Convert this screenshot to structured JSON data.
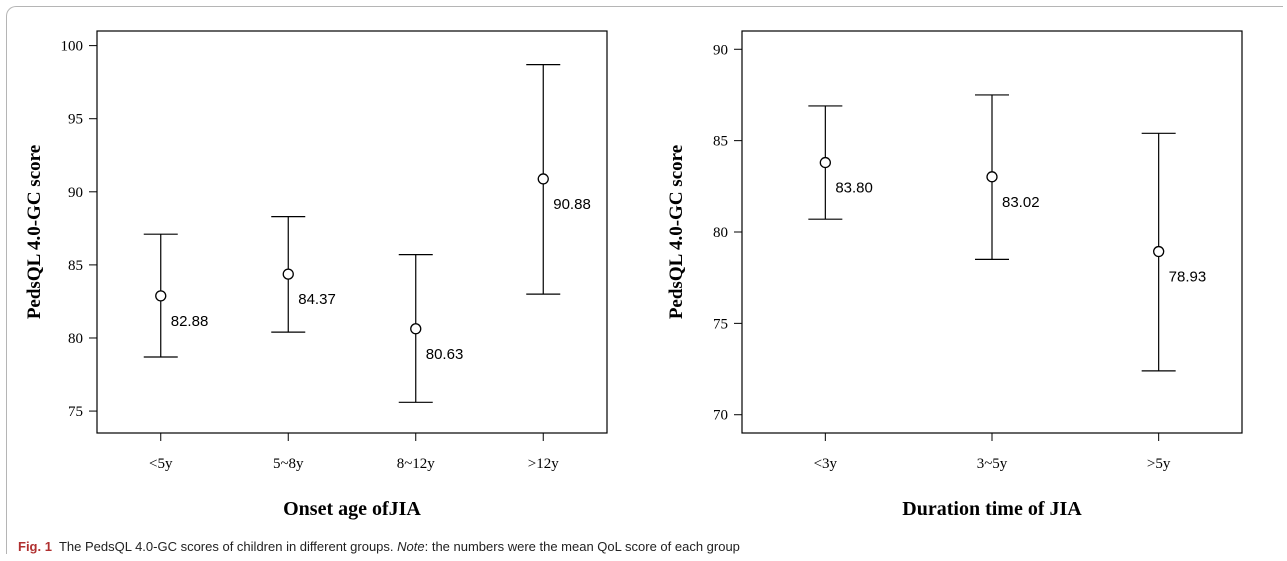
{
  "caption": {
    "label": "Fig. 1",
    "text_a": "The PedsQL 4.0-GC scores of children in different groups.",
    "note_word": "Note",
    "text_b": ": the numbers were the mean QoL score of each group"
  },
  "chart_data": [
    {
      "type": "errorbar",
      "xlabel": "Onset age ofJIA",
      "ylabel": "PedsQL 4.0-GC score",
      "ylim": [
        73.5,
        101
      ],
      "yticks": [
        75,
        80,
        85,
        90,
        95,
        100
      ],
      "categories": [
        "<5y",
        "5~8y",
        "8~12y",
        ">12y"
      ],
      "means": [
        82.88,
        84.37,
        80.63,
        90.88
      ],
      "mean_labels": [
        "82.88",
        "84.37",
        "80.63",
        "90.88"
      ],
      "lower": [
        78.7,
        80.4,
        75.6,
        83.0
      ],
      "upper": [
        87.1,
        88.3,
        85.7,
        98.7
      ]
    },
    {
      "type": "errorbar",
      "xlabel": "Duration time of JIA",
      "ylabel": "PedsQL 4.0-GC score",
      "ylim": [
        69,
        91
      ],
      "yticks": [
        70,
        75,
        80,
        85,
        90
      ],
      "categories": [
        "<3y",
        "3~5y",
        ">5y"
      ],
      "means": [
        83.8,
        83.02,
        78.93
      ],
      "mean_labels": [
        "83.80",
        "83.02",
        "78.93"
      ],
      "lower": [
        80.7,
        78.5,
        72.4
      ],
      "upper": [
        86.9,
        87.5,
        85.4
      ]
    }
  ]
}
